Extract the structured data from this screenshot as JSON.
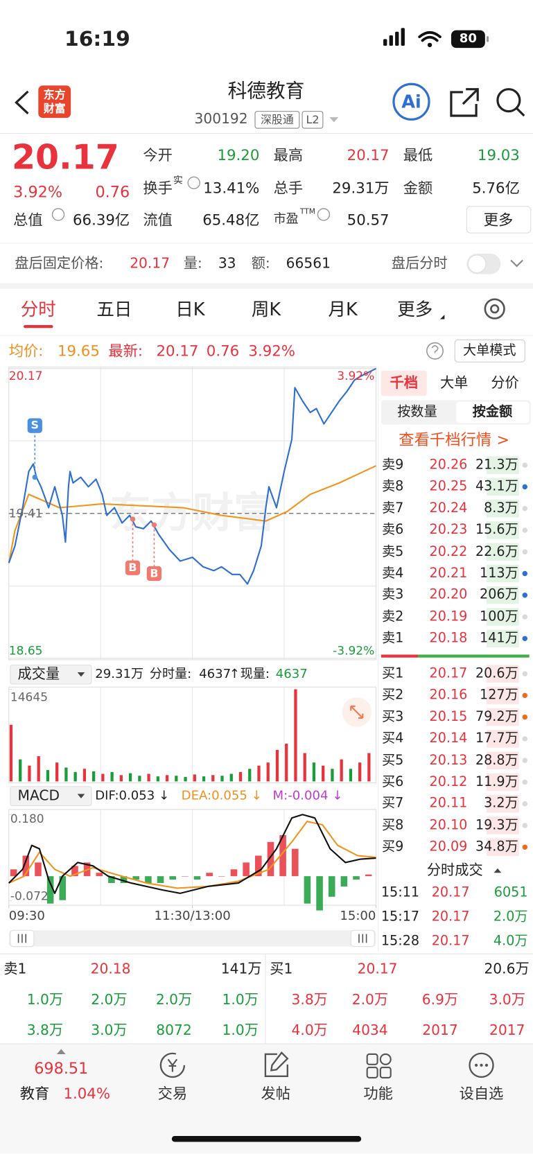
{
  "status": {
    "time": "16:19",
    "battery": "80"
  },
  "header": {
    "logo": [
      "东方",
      "财富"
    ],
    "title": "科德教育",
    "code": "300192",
    "tags": [
      "深股通",
      "L2"
    ],
    "ai": "Ai"
  },
  "quote": {
    "price": "20.17",
    "pct": "3.92%",
    "change": "0.76",
    "fields": [
      {
        "label": "今开",
        "value": "19.20",
        "color": "#1a9c3a"
      },
      {
        "label": "最高",
        "value": "20.17",
        "color": "#e8323c"
      },
      {
        "label": "最低",
        "value": "19.03",
        "color": "#1a9c3a"
      },
      {
        "label": "换手",
        "sup": "实",
        "value": "13.41%",
        "color": "#222222"
      },
      {
        "label": "总手",
        "value": "29.31万",
        "color": "#222222"
      },
      {
        "label": "金额",
        "value": "5.76亿",
        "color": "#222222"
      },
      {
        "label": "总值",
        "value": "66.39亿",
        "color": "#222222"
      },
      {
        "label": "流值",
        "value": "65.48亿",
        "color": "#222222"
      },
      {
        "label": "市盈",
        "sup": "TTM",
        "value": "50.57",
        "color": "#222222"
      }
    ],
    "more": "更多"
  },
  "afterhours": {
    "label": "盘后固定价格:",
    "price": "20.17",
    "vol_label": "量:",
    "vol": "33",
    "amt_label": "额:",
    "amt": "66561",
    "toggle": "盘后分时"
  },
  "tabs": [
    "分时",
    "五日",
    "日K",
    "周K",
    "月K",
    "更多"
  ],
  "active_tab": 0,
  "info": {
    "avg_label": "均价:",
    "avg": "19.65",
    "last_label": "最新:",
    "last": "20.17",
    "change": "0.76",
    "pct": "3.92%",
    "mode": "大单模式"
  },
  "chart_data": [
    {
      "type": "line",
      "watermark": "东方财富",
      "xlim": [
        0,
        240
      ],
      "ylim": [
        18.65,
        20.17
      ],
      "yticks": [
        20.17,
        19.41,
        18.65
      ],
      "y2lim": [
        -3.92,
        3.92
      ],
      "y2ticks": [
        {
          "value": 3.92,
          "label": "3.92%"
        },
        {
          "value": -3.92,
          "label": "-3.92%"
        }
      ],
      "series": [
        {
          "color": "#2f6fd0",
          "x": [
            0,
            4,
            9,
            13,
            16,
            18,
            21,
            26,
            30,
            35,
            37,
            39,
            40,
            42,
            47,
            52,
            57,
            61,
            64,
            69,
            74,
            79,
            83,
            88,
            93,
            98,
            105,
            112,
            120,
            127,
            134,
            139,
            146,
            151,
            156,
            160,
            165,
            168,
            170,
            175,
            180,
            185,
            187,
            192,
            197,
            201,
            206,
            211,
            216,
            221,
            226,
            230,
            235,
            240
          ],
          "values": [
            19.15,
            19.24,
            19.44,
            19.63,
            19.67,
            19.6,
            19.55,
            19.44,
            19.55,
            19.4,
            19.26,
            19.55,
            19.63,
            19.57,
            19.6,
            19.55,
            19.59,
            19.51,
            19.4,
            19.44,
            19.36,
            19.4,
            19.34,
            19.33,
            19.37,
            19.3,
            19.22,
            19.16,
            19.18,
            19.13,
            19.11,
            19.13,
            19.09,
            19.09,
            19.04,
            19.11,
            19.24,
            19.44,
            19.55,
            19.44,
            19.63,
            19.8,
            20.07,
            20.0,
            19.94,
            19.96,
            19.88,
            19.94,
            20.0,
            20.05,
            20.11,
            20.13,
            20.15,
            20.17
          ]
        },
        {
          "color": "#f0961e",
          "x": [
            0,
            4,
            13,
            33,
            61,
            114,
            139,
            168,
            182,
            197,
            216,
            240
          ],
          "values": [
            19.15,
            19.32,
            19.51,
            19.44,
            19.46,
            19.44,
            19.4,
            19.37,
            19.42,
            19.51,
            19.57,
            19.66
          ]
        }
      ],
      "annotations": [
        {
          "label": "S",
          "x": 17,
          "y": 19.6,
          "position": "above",
          "color": "#4a8fe0"
        },
        {
          "label": "B",
          "x": 81,
          "y": 19.38,
          "position": "below",
          "color": "#f07a70"
        },
        {
          "label": "B",
          "x": 95,
          "y": 19.35,
          "position": "below",
          "color": "#f07a70"
        }
      ]
    },
    {
      "type": "bar",
      "xlim": [
        0,
        240
      ],
      "ylim": [
        0,
        14645
      ],
      "yticks": [
        14645
      ],
      "x": [
        0,
        6,
        12,
        18,
        24,
        30,
        36,
        42,
        48,
        54,
        60,
        66,
        72,
        78,
        84,
        90,
        96,
        102,
        108,
        114,
        120,
        126,
        132,
        138,
        144,
        150,
        156,
        162,
        168,
        174,
        180,
        186,
        192,
        198,
        204,
        210,
        216,
        222,
        228,
        234
      ],
      "values": [
        9000,
        3500,
        2500,
        4000,
        1800,
        3000,
        2200,
        1500,
        2000,
        1600,
        1200,
        1500,
        1000,
        1300,
        900,
        1200,
        800,
        1000,
        900,
        700,
        1100,
        800,
        1000,
        900,
        1200,
        1500,
        2000,
        2500,
        3000,
        5000,
        6000,
        14645,
        4500,
        3000,
        2500,
        2000,
        3500,
        2000,
        3000,
        4500
      ],
      "colors": [
        "#e8323c",
        "#1a9c3a",
        "#e8323c",
        "#e8323c",
        "#1a9c3a",
        "#e8323c",
        "#1a9c3a",
        "#1a9c3a",
        "#e8323c",
        "#1a9c3a",
        "#e8323c",
        "#1a9c3a",
        "#e8323c",
        "#1a9c3a",
        "#1a9c3a",
        "#e8323c",
        "#1a9c3a",
        "#e8323c",
        "#1a9c3a",
        "#1a9c3a",
        "#e8323c",
        "#1a9c3a",
        "#e8323c",
        "#1a9c3a",
        "#1a9c3a",
        "#e8323c",
        "#1a9c3a",
        "#e8323c",
        "#e8323c",
        "#e8323c",
        "#e8323c",
        "#e8323c",
        "#e8323c",
        "#1a9c3a",
        "#e8323c",
        "#1a9c3a",
        "#e8323c",
        "#1a9c3a",
        "#e8323c",
        "#e8323c"
      ]
    },
    {
      "type": "macd",
      "xlim": [
        0,
        240
      ],
      "ylim": [
        -0.072,
        0.18
      ],
      "yticks": [
        {
          "value": 0.18,
          "label": "0.180"
        },
        -0.072
      ],
      "xticks": [
        {
          "value": 0,
          "label": "09:30"
        },
        {
          "value": 120,
          "label": "11:30/13:00"
        },
        {
          "value": 240,
          "label": "15:00"
        }
      ],
      "colors": {
        "positive": "#e8323c",
        "negative": "#1a9c3a"
      },
      "hist_x": [
        0,
        8,
        16,
        24,
        32,
        40,
        48,
        56,
        64,
        72,
        80,
        88,
        96,
        104,
        112,
        120,
        128,
        136,
        144,
        152,
        160,
        168,
        176,
        184,
        192,
        200,
        208,
        216,
        224,
        232
      ],
      "hist": [
        0.02,
        0.06,
        0.04,
        -0.08,
        -0.07,
        0.03,
        0.04,
        0.01,
        -0.02,
        -0.02,
        -0.01,
        -0.02,
        -0.02,
        -0.01,
        0.0,
        -0.01,
        0.01,
        0.0,
        0.02,
        0.04,
        0.06,
        0.1,
        0.12,
        0.08,
        -0.08,
        -0.1,
        -0.06,
        -0.03,
        -0.01,
        0.005
      ],
      "series": [
        {
          "color": "#111111",
          "x": [
            0,
            9,
            15,
            20,
            26,
            30,
            35,
            45,
            55,
            65,
            80,
            100,
            112,
            130,
            150,
            165,
            175,
            185,
            192,
            200,
            210,
            220,
            230,
            240
          ],
          "values": [
            -0.02,
            0.02,
            0.09,
            0.08,
            -0.01,
            -0.05,
            0.0,
            0.04,
            0.03,
            0.0,
            -0.02,
            -0.04,
            -0.05,
            -0.03,
            -0.02,
            0.02,
            0.08,
            0.17,
            0.18,
            0.17,
            0.08,
            0.04,
            0.05,
            0.053
          ]
        },
        {
          "color": "#f0961e",
          "x": [
            0,
            10,
            20,
            30,
            40,
            55,
            70,
            90,
            110,
            130,
            150,
            170,
            185,
            195,
            205,
            215,
            228,
            240
          ],
          "values": [
            -0.02,
            0.0,
            0.07,
            0.02,
            0.0,
            0.025,
            0.005,
            -0.02,
            -0.035,
            -0.03,
            -0.015,
            0.02,
            0.1,
            0.16,
            0.15,
            0.09,
            0.06,
            0.055
          ]
        }
      ]
    }
  ],
  "volume_header": {
    "label": "成交量",
    "total": "29.31万",
    "period_label": "分时量:",
    "period": "4637",
    "arrow": "↑",
    "now_label": "现量:",
    "now": "4637"
  },
  "macd_header": {
    "label": "MACD",
    "dif": "DIF:0.053 ↓",
    "dea": "DEA:0.055 ↓",
    "m": "M:-0.004 ↓"
  },
  "depth": {
    "tabs": [
      "千档",
      "大单",
      "分价"
    ],
    "modes": [
      "按数量",
      "按金额"
    ],
    "link": "查看千档行情 >",
    "asks": [
      {
        "label": "卖9",
        "price": "20.26",
        "amount": "21.3万"
      },
      {
        "label": "卖8",
        "price": "20.25",
        "amount": "43.1万",
        "dot": "#2f6fd0"
      },
      {
        "label": "卖7",
        "price": "20.24",
        "amount": "8.3万"
      },
      {
        "label": "卖6",
        "price": "20.23",
        "amount": "15.6万"
      },
      {
        "label": "卖5",
        "price": "20.22",
        "amount": "22.6万"
      },
      {
        "label": "卖4",
        "price": "20.21",
        "amount": "113万",
        "dot": "#2f6fd0"
      },
      {
        "label": "卖3",
        "price": "20.20",
        "amount": "206万",
        "dot": "#2f6fd0"
      },
      {
        "label": "卖2",
        "price": "20.19",
        "amount": "100万"
      },
      {
        "label": "卖1",
        "price": "20.18",
        "amount": "141万",
        "dot": "#2f6fd0"
      }
    ],
    "bids": [
      {
        "label": "买1",
        "price": "20.17",
        "amount": "20.6万"
      },
      {
        "label": "买2",
        "price": "20.16",
        "amount": "127万",
        "dot": "#f06a1e"
      },
      {
        "label": "买3",
        "price": "20.15",
        "amount": "79.2万",
        "dot": "#f06a1e"
      },
      {
        "label": "买4",
        "price": "20.14",
        "amount": "17.7万"
      },
      {
        "label": "买5",
        "price": "20.13",
        "amount": "28.8万"
      },
      {
        "label": "买6",
        "price": "20.12",
        "amount": "11.9万"
      },
      {
        "label": "买7",
        "price": "20.11",
        "amount": "3.2万"
      },
      {
        "label": "买8",
        "price": "20.10",
        "amount": "19.3万"
      },
      {
        "label": "买9",
        "price": "20.09",
        "amount": "34.8万",
        "dot": "#f06a1e"
      }
    ],
    "trades_title": "分时成交",
    "trades": [
      {
        "time": "15:11",
        "price": "20.17",
        "vol": "6051"
      },
      {
        "time": "15:17",
        "price": "20.17",
        "vol": "2.0万"
      },
      {
        "time": "15:28",
        "price": "20.17",
        "vol": "4.0万"
      }
    ]
  },
  "summary": {
    "ask": {
      "label": "卖1",
      "price": "20.18",
      "amount": "141万",
      "rows": [
        [
          "1.0万",
          "2.0万",
          "2.0万",
          "1.0万"
        ],
        [
          "3.8万",
          "3.0万",
          "8072",
          "1.0万"
        ]
      ]
    },
    "bid": {
      "label": "买1",
      "price": "20.17",
      "amount": "20.6万",
      "rows": [
        [
          "3.8万",
          "2.0万",
          "6.9万",
          "3.0万"
        ],
        [
          "4.0万",
          "4034",
          "2017",
          "2017"
        ]
      ]
    }
  },
  "nav": {
    "index_value": "698.51",
    "index_name": "教育",
    "index_pct": "1.04%",
    "items": [
      "交易",
      "发帖",
      "功能",
      "设自选"
    ]
  }
}
